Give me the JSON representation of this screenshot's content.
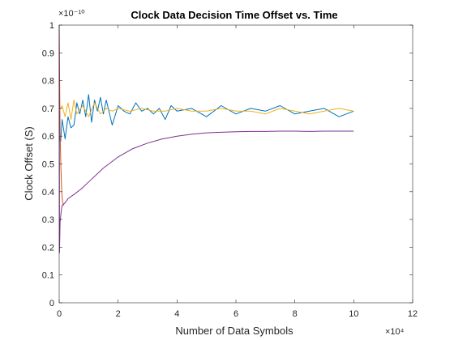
{
  "chart_data": {
    "type": "line",
    "title": "Clock Data Decision Time Offset vs. Time",
    "xlabel": "Number of Data Symbols",
    "ylabel": "Clock Offset (S)",
    "x_exponent_label": "×10⁴",
    "y_exponent_label": "×10⁻¹⁰",
    "xlim": [
      0,
      120000
    ],
    "ylim": [
      0,
      1e-10
    ],
    "x_ticks": [
      0,
      20000,
      40000,
      60000,
      80000,
      100000,
      120000
    ],
    "x_tick_labels": [
      "0",
      "2",
      "4",
      "6",
      "8",
      "10",
      "12"
    ],
    "y_ticks": [
      0,
      1e-11,
      2e-11,
      3e-11,
      4e-11,
      5e-11,
      6e-11,
      7e-11,
      8e-11,
      9e-11,
      1e-10
    ],
    "y_tick_labels": [
      "0",
      "0.1",
      "0.2",
      "0.3",
      "0.4",
      "0.5",
      "0.6",
      "0.7",
      "0.8",
      "0.9",
      "1"
    ],
    "grid": false,
    "legend": false,
    "series": [
      {
        "color": "#0072BD",
        "x": [
          0,
          500,
          1000,
          2000,
          3000,
          4000,
          5000,
          6000,
          7000,
          8000,
          9000,
          10000,
          11000,
          12000,
          13000,
          14000,
          15000,
          16000,
          18000,
          20000,
          22000,
          24000,
          26000,
          28000,
          30000,
          32000,
          34000,
          36000,
          38000,
          40000,
          45000,
          50000,
          55000,
          60000,
          65000,
          70000,
          75000,
          80000,
          85000,
          90000,
          95000,
          100000
        ],
        "values": [
          6e-11,
          5.8e-11,
          6.6e-11,
          5.9e-11,
          6.7e-11,
          6.3e-11,
          6.4e-11,
          7.2e-11,
          6.8e-11,
          7.3e-11,
          6.7e-11,
          7.5e-11,
          6.5e-11,
          7.3e-11,
          6.9e-11,
          7.4e-11,
          6.8e-11,
          7.3e-11,
          6.4e-11,
          7.1e-11,
          6.9e-11,
          6.8e-11,
          7.2e-11,
          6.9e-11,
          7e-11,
          6.8e-11,
          7e-11,
          6.6e-11,
          7.1e-11,
          6.9e-11,
          7e-11,
          6.7e-11,
          7.1e-11,
          6.8e-11,
          7e-11,
          6.9e-11,
          7.1e-11,
          6.8e-11,
          6.9e-11,
          7e-11,
          6.7e-11,
          6.9e-11
        ]
      },
      {
        "color": "#D95319",
        "x": [
          0,
          300,
          600,
          900,
          1200,
          1500
        ],
        "values": [
          1e-10,
          6.1e-11,
          4.8e-11,
          3.9e-11,
          3.6e-11,
          3.5e-11
        ]
      },
      {
        "color": "#EDB120",
        "x": [
          0,
          1000,
          2000,
          3000,
          4000,
          5000,
          6000,
          8000,
          10000,
          12000,
          14000,
          16000,
          18000,
          20000,
          24000,
          28000,
          32000,
          36000,
          40000,
          45000,
          50000,
          55000,
          60000,
          65000,
          70000,
          75000,
          80000,
          85000,
          90000,
          95000,
          100000
        ],
        "values": [
          6.9e-11,
          7.1e-11,
          6.7e-11,
          7.2e-11,
          6.6e-11,
          7.3e-11,
          6.8e-11,
          7.1e-11,
          6.7e-11,
          7.2e-11,
          6.8e-11,
          7e-11,
          6.9e-11,
          7e-11,
          6.9e-11,
          7e-11,
          6.9e-11,
          6.9e-11,
          7e-11,
          6.9e-11,
          6.9e-11,
          7e-11,
          6.9e-11,
          6.9e-11,
          6.8e-11,
          7e-11,
          6.9e-11,
          6.8e-11,
          6.9e-11,
          7e-11,
          6.9e-11
        ]
      },
      {
        "color": "#7E2F8E",
        "x": [
          0,
          100,
          300,
          700,
          1000,
          2000,
          3000,
          5000,
          7500,
          10000,
          15000,
          20000,
          25000,
          30000,
          35000,
          40000,
          45000,
          50000,
          55000,
          60000,
          65000,
          70000,
          75000,
          80000,
          85000,
          90000,
          95000,
          100000
        ],
        "values": [
          1e-10,
          1.8e-11,
          2.9e-11,
          3.3e-11,
          3.5e-11,
          3.6e-11,
          3.75e-11,
          3.9e-11,
          4.1e-11,
          4.35e-11,
          4.85e-11,
          5.25e-11,
          5.55e-11,
          5.75e-11,
          5.9e-11,
          6e-11,
          6.07e-11,
          6.12e-11,
          6.14e-11,
          6.16e-11,
          6.17e-11,
          6.17e-11,
          6.18e-11,
          6.18e-11,
          6.17e-11,
          6.18e-11,
          6.18e-11,
          6.18e-11
        ]
      }
    ]
  }
}
